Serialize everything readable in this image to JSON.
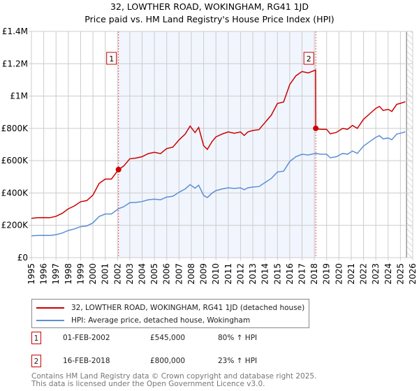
{
  "chart_data": {
    "type": "line",
    "title": "32, LOWTHER ROAD, WOKINGHAM, RG41 1JD",
    "subtitle": "Price paid vs. HM Land Registry's House Price Index (HPI)",
    "xlim": [
      1995,
      2026
    ],
    "ylim": [
      0,
      1400000
    ],
    "grid": true,
    "y_ticks": [
      {
        "value": 0,
        "label": "£0"
      },
      {
        "value": 200000,
        "label": "£200K"
      },
      {
        "value": 400000,
        "label": "£400K"
      },
      {
        "value": 600000,
        "label": "£600K"
      },
      {
        "value": 800000,
        "label": "£800K"
      },
      {
        "value": 1000000,
        "label": "£1M"
      },
      {
        "value": 1200000,
        "label": "£1.2M"
      },
      {
        "value": 1400000,
        "label": "£1.4M"
      }
    ],
    "x_ticks": [
      "1995",
      "1996",
      "1997",
      "1998",
      "1999",
      "2000",
      "2001",
      "2002",
      "2003",
      "2004",
      "2005",
      "2006",
      "2007",
      "2008",
      "2009",
      "2010",
      "2011",
      "2012",
      "2013",
      "2014",
      "2015",
      "2016",
      "2017",
      "2018",
      "2019",
      "2020",
      "2021",
      "2022",
      "2023",
      "2024",
      "2025",
      "2026"
    ],
    "shaded_period": [
      2002.08,
      2018.12
    ],
    "forecast_hatch_from": 2025.5,
    "series": [
      {
        "name": "32, LOWTHER ROAD, WOKINGHAM, RG41 1JD (detached house)",
        "color": "#cc0000",
        "x": [
          1995,
          1995.5,
          1996,
          1996.5,
          1997,
          1997.5,
          1998,
          1998.5,
          1999,
          1999.5,
          2000,
          2000.5,
          2001,
          2001.5,
          2002.08,
          2002.5,
          2003,
          2003.5,
          2004,
          2004.5,
          2005,
          2005.5,
          2006,
          2006.5,
          2007,
          2007.5,
          2007.9,
          2008.3,
          2008.6,
          2009,
          2009.3,
          2009.7,
          2010,
          2010.5,
          2011,
          2011.5,
          2012,
          2012.3,
          2012.6,
          2013,
          2013.5,
          2014,
          2014.5,
          2015,
          2015.5,
          2016,
          2016.5,
          2017,
          2017.5,
          2018.1,
          2018.12,
          2018.5,
          2019,
          2019.3,
          2019.8,
          2020.3,
          2020.7,
          2021.1,
          2021.5,
          2022,
          2022.5,
          2023,
          2023.3,
          2023.6,
          2024,
          2024.3,
          2024.7,
          2025,
          2025.4
        ],
        "y": [
          243,
          247,
          248,
          247,
          256,
          274,
          302,
          320,
          346,
          353,
          387,
          459,
          486,
          486,
          545,
          567,
          612,
          616,
          625,
          644,
          652,
          644,
          675,
          684,
          729,
          765,
          814,
          774,
          806,
          693,
          670,
          720,
          747,
          765,
          778,
          770,
          778,
          756,
          778,
          787,
          792,
          837,
          882,
          954,
          963,
          1071,
          1125,
          1152,
          1143,
          1161,
          800,
          794,
          794,
          766,
          775,
          800,
          794,
          818,
          800,
          856,
          890,
          924,
          936,
          911,
          918,
          905,
          949,
          955,
          965
        ],
        "y_unit": "£K"
      },
      {
        "name": "HPI: Average price, detached house, Wokingham",
        "color": "#5b8fd4",
        "x": [
          1995,
          1995.5,
          1996,
          1996.5,
          1997,
          1997.5,
          1998,
          1998.5,
          1999,
          1999.5,
          2000,
          2000.5,
          2001,
          2001.5,
          2002.08,
          2002.5,
          2003,
          2003.5,
          2004,
          2004.5,
          2005,
          2005.5,
          2006,
          2006.5,
          2007,
          2007.5,
          2007.9,
          2008.3,
          2008.6,
          2009,
          2009.3,
          2009.7,
          2010,
          2010.5,
          2011,
          2011.5,
          2012,
          2012.3,
          2012.6,
          2013,
          2013.5,
          2014,
          2014.5,
          2015,
          2015.5,
          2016,
          2016.5,
          2017,
          2017.5,
          2018.1,
          2018.5,
          2019,
          2019.3,
          2019.8,
          2020.3,
          2020.7,
          2021.1,
          2021.5,
          2022,
          2022.5,
          2023,
          2023.3,
          2023.6,
          2024,
          2024.3,
          2024.7,
          2025,
          2025.4
        ],
        "y": [
          135,
          137,
          138,
          137,
          142,
          152,
          168,
          178,
          192,
          196,
          215,
          255,
          270,
          270,
          303,
          315,
          340,
          342,
          347,
          358,
          362,
          358,
          375,
          380,
          405,
          425,
          452,
          430,
          448,
          385,
          372,
          400,
          415,
          425,
          432,
          428,
          432,
          420,
          432,
          437,
          440,
          465,
          490,
          530,
          535,
          595,
          625,
          640,
          635,
          645,
          640,
          640,
          618,
          625,
          645,
          640,
          660,
          645,
          690,
          718,
          745,
          755,
          735,
          740,
          730,
          765,
          770,
          778
        ],
        "y_unit": "£K"
      }
    ],
    "sales": [
      {
        "num": "1",
        "x": 2002.08,
        "value": 545000,
        "date": "01-FEB-2002",
        "price": "£545,000",
        "hpi": "80% ↑ HPI"
      },
      {
        "num": "2",
        "x": 2018.12,
        "value": 800000,
        "date": "16-FEB-2018",
        "price": "£800,000",
        "hpi": "23% ↑ HPI"
      }
    ],
    "legend_placement": "below"
  },
  "footer": {
    "line1": "Contains HM Land Registry data © Crown copyright and database right 2025.",
    "line2": "This data is licensed under the Open Government Licence v3.0."
  }
}
